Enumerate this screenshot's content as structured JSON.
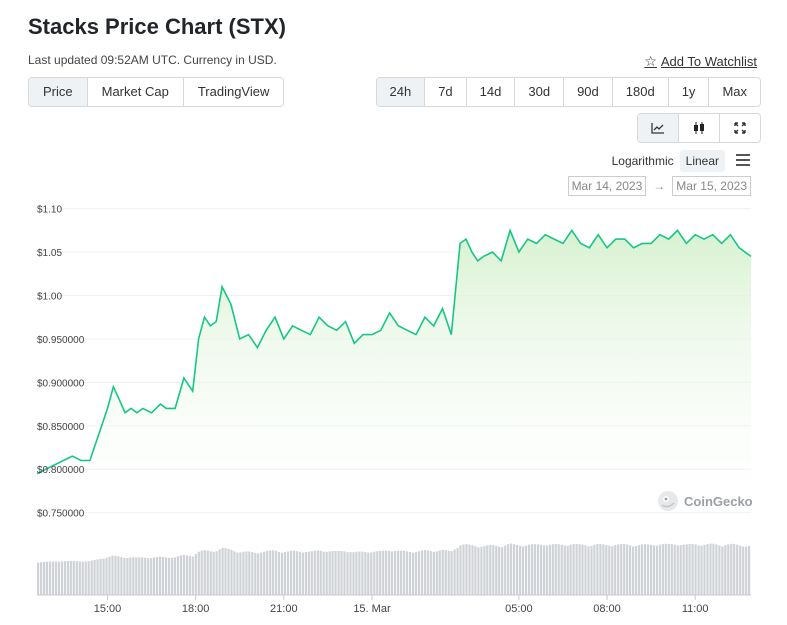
{
  "header": {
    "title": "Stacks Price Chart (STX)",
    "subtitle": "Last updated 09:52AM UTC. Currency in USD.",
    "watchlist_label": "Add To Watchlist"
  },
  "tabs": [
    {
      "label": "Price",
      "active": true
    },
    {
      "label": "Market Cap",
      "active": false
    },
    {
      "label": "TradingView",
      "active": false
    }
  ],
  "ranges": [
    {
      "label": "24h",
      "active": true
    },
    {
      "label": "7d",
      "active": false
    },
    {
      "label": "14d",
      "active": false
    },
    {
      "label": "30d",
      "active": false
    },
    {
      "label": "90d",
      "active": false
    },
    {
      "label": "180d",
      "active": false
    },
    {
      "label": "1y",
      "active": false
    },
    {
      "label": "Max",
      "active": false
    }
  ],
  "chart_types": [
    {
      "icon": "line-chart-icon",
      "active": true
    },
    {
      "icon": "candlestick-icon",
      "active": false
    },
    {
      "icon": "expand-icon",
      "active": false
    }
  ],
  "scale": {
    "logarithmic": "Logarithmic",
    "linear": "Linear",
    "selected": "Linear"
  },
  "date_range": {
    "start": "Mar 14, 2023",
    "end": "Mar 15, 2023",
    "arrow": "→"
  },
  "brand": "CoinGecko",
  "colors": {
    "line": "#16c784",
    "area_top": "#d6f1cf",
    "volume": "#cfd2d6",
    "active_bg": "#eff2f5"
  },
  "chart_data": {
    "type": "line",
    "ylabel": "",
    "ylim": [
      0.73,
      1.11
    ],
    "yticks": [
      {
        "value": 1.1,
        "label": "$1.10"
      },
      {
        "value": 1.05,
        "label": "$1.05"
      },
      {
        "value": 1.0,
        "label": "$1.00"
      },
      {
        "value": 0.95,
        "label": "$0.950000"
      },
      {
        "value": 0.9,
        "label": "$0.900000"
      },
      {
        "value": 0.85,
        "label": "$0.850000"
      },
      {
        "value": 0.8,
        "label": "$0.800000"
      },
      {
        "value": 0.75,
        "label": "$0.750000"
      }
    ],
    "xlim": [
      12.6,
      36.9
    ],
    "xticks": [
      {
        "value": 15,
        "label": "15:00"
      },
      {
        "value": 18,
        "label": "18:00"
      },
      {
        "value": 21,
        "label": "21:00"
      },
      {
        "value": 24,
        "label": "15. Mar"
      },
      {
        "value": 29,
        "label": "05:00"
      },
      {
        "value": 32,
        "label": "08:00"
      },
      {
        "value": 35,
        "label": "11:00"
      }
    ],
    "series": [
      {
        "x": [
          12.6,
          12.9,
          13.2,
          13.5,
          13.8,
          14.1,
          14.4,
          14.7,
          15.0,
          15.2,
          15.4,
          15.6,
          15.8,
          16.0,
          16.2,
          16.5,
          16.8,
          17.0,
          17.3,
          17.6,
          17.9,
          18.1,
          18.3,
          18.5,
          18.7,
          18.9,
          19.2,
          19.5,
          19.8,
          20.1,
          20.4,
          20.7,
          21.0,
          21.3,
          21.6,
          21.9,
          22.2,
          22.5,
          22.8,
          23.1,
          23.4,
          23.7,
          24.0,
          24.3,
          24.6,
          24.9,
          25.2,
          25.5,
          25.8,
          26.1,
          26.4,
          26.7,
          27.0,
          27.2,
          27.4,
          27.6,
          27.8,
          28.1,
          28.4,
          28.7,
          29.0,
          29.3,
          29.6,
          29.9,
          30.2,
          30.5,
          30.8,
          31.1,
          31.4,
          31.7,
          32.0,
          32.3,
          32.6,
          32.9,
          33.2,
          33.5,
          33.8,
          34.1,
          34.4,
          34.7,
          35.0,
          35.3,
          35.6,
          35.9,
          36.2,
          36.5,
          36.9
        ],
        "values": [
          0.795,
          0.8,
          0.805,
          0.81,
          0.815,
          0.81,
          0.81,
          0.84,
          0.87,
          0.895,
          0.88,
          0.865,
          0.87,
          0.865,
          0.87,
          0.865,
          0.875,
          0.87,
          0.87,
          0.905,
          0.89,
          0.95,
          0.975,
          0.965,
          0.97,
          1.01,
          0.99,
          0.95,
          0.955,
          0.94,
          0.96,
          0.975,
          0.95,
          0.965,
          0.96,
          0.955,
          0.975,
          0.965,
          0.96,
          0.97,
          0.945,
          0.955,
          0.955,
          0.96,
          0.98,
          0.965,
          0.96,
          0.955,
          0.975,
          0.965,
          0.985,
          0.955,
          1.06,
          1.065,
          1.05,
          1.04,
          1.045,
          1.05,
          1.04,
          1.075,
          1.05,
          1.065,
          1.06,
          1.07,
          1.065,
          1.06,
          1.075,
          1.06,
          1.055,
          1.07,
          1.055,
          1.065,
          1.065,
          1.055,
          1.06,
          1.06,
          1.07,
          1.065,
          1.075,
          1.06,
          1.07,
          1.065,
          1.07,
          1.06,
          1.07,
          1.055,
          1.045
        ]
      }
    ],
    "volume_range": [
      0.5,
      0.95
    ],
    "grid": true,
    "legend": "none"
  }
}
